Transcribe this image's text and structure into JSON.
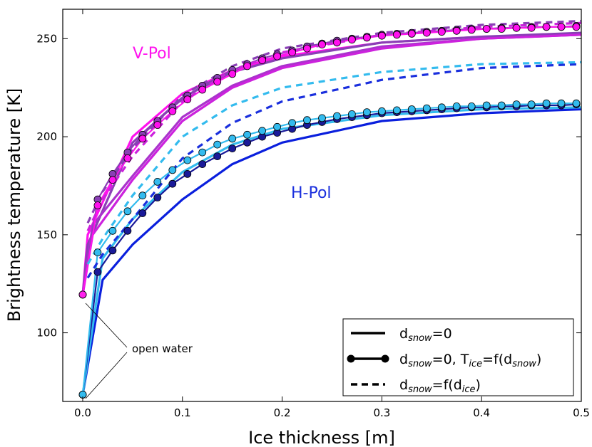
{
  "chart_data": {
    "type": "line",
    "xlabel": "Ice thickness [m]",
    "ylabel": "Brightness temperature [K]",
    "xlim": [
      -0.02,
      0.5
    ],
    "ylim": [
      65,
      265
    ],
    "xticks": [
      "0.0",
      "0.1",
      "0.2",
      "0.3",
      "0.4",
      "0.5"
    ],
    "yticks": [
      "100",
      "150",
      "200",
      "250"
    ],
    "grid": false,
    "legend_position": "bottom-right",
    "annotations": {
      "vpol": "V-Pol",
      "hpol": "H-Pol",
      "open_water": "open water"
    },
    "legend": [
      {
        "style": "solid",
        "prefix": "d",
        "sub": "snow",
        "suffix": "=0",
        "extra": ""
      },
      {
        "style": "solid-markers",
        "prefix": "d",
        "sub": "snow",
        "suffix": "=0, T",
        "extra_sub": "ice",
        "extra": "=f(d",
        "extra_sub2": "snow",
        "end": ")"
      },
      {
        "style": "dashed",
        "prefix": "d",
        "sub": "snow",
        "suffix": "=f(d",
        "extra_sub": "ice",
        "end": ")"
      }
    ],
    "legend_labels": [
      "d_snow=0",
      "d_snow=0, T_ice=f(d_snow)",
      "d_snow=f(d_ice)"
    ],
    "open_water_points": [
      {
        "x": 0.0,
        "y": 119.5,
        "color": "#ff22ee"
      },
      {
        "x": 0.0,
        "y": 68.5,
        "color": "#33bbee"
      }
    ],
    "series": [
      {
        "color": "#ff11ee",
        "style": "solid",
        "x": [
          0.0,
          0.005,
          0.05,
          0.1,
          0.15,
          0.2,
          0.3,
          0.4,
          0.5
        ],
        "y": [
          119.5,
          150,
          200,
          222,
          234,
          241,
          248,
          251,
          252
        ]
      },
      {
        "color": "#8a3fb5",
        "style": "solid",
        "x": [
          0.0,
          0.005,
          0.05,
          0.1,
          0.15,
          0.2,
          0.3,
          0.4,
          0.5
        ],
        "y": [
          119.5,
          145,
          197,
          220,
          233,
          240,
          248,
          251,
          253
        ]
      },
      {
        "color": "#aa33cc",
        "style": "solid",
        "x": [
          0.0,
          0.01,
          0.05,
          0.1,
          0.15,
          0.2,
          0.3,
          0.4,
          0.5
        ],
        "y": [
          119.5,
          155,
          180,
          210,
          226,
          236,
          246,
          250,
          252
        ]
      },
      {
        "color": "#cc22dd",
        "style": "solid",
        "x": [
          0.0,
          0.01,
          0.05,
          0.1,
          0.15,
          0.2,
          0.3,
          0.4,
          0.5
        ],
        "y": [
          119.5,
          150,
          178,
          208,
          225,
          235,
          245,
          250,
          252
        ]
      },
      {
        "color": "#8a3fb5",
        "style": "markers",
        "x": [
          0.0,
          0.015,
          0.03,
          0.045,
          0.06,
          0.075,
          0.09,
          0.105,
          0.12,
          0.135,
          0.15,
          0.165,
          0.18,
          0.195,
          0.21,
          0.225,
          0.24,
          0.255,
          0.27,
          0.285,
          0.3,
          0.315,
          0.33,
          0.345,
          0.36,
          0.375,
          0.39,
          0.405,
          0.42,
          0.435,
          0.45,
          0.465,
          0.48,
          0.495
        ],
        "y": [
          119.5,
          168,
          181,
          192,
          201,
          208,
          215,
          221,
          226,
          230,
          234,
          237,
          240,
          242,
          244,
          246,
          247.5,
          249,
          250,
          251,
          252,
          252.5,
          253,
          253.5,
          254,
          254.5,
          255,
          255,
          255.5,
          255.5,
          256,
          256,
          256,
          256.5
        ]
      },
      {
        "color": "#ff11ee",
        "style": "markers",
        "x": [
          0.0,
          0.015,
          0.03,
          0.045,
          0.06,
          0.075,
          0.09,
          0.105,
          0.12,
          0.135,
          0.15,
          0.165,
          0.18,
          0.195,
          0.21,
          0.225,
          0.24,
          0.255,
          0.27,
          0.285,
          0.3,
          0.315,
          0.33,
          0.345,
          0.36,
          0.375,
          0.39,
          0.405,
          0.42,
          0.435,
          0.45,
          0.465,
          0.48,
          0.495
        ],
        "y": [
          119.5,
          165,
          178,
          189,
          199,
          206,
          213,
          219,
          224,
          228,
          232,
          236,
          239,
          241,
          243,
          245,
          247,
          248,
          249.5,
          250.5,
          251.5,
          252,
          252.5,
          253,
          253.5,
          254,
          254.5,
          255,
          255,
          255.5,
          255.5,
          256,
          256,
          256
        ]
      },
      {
        "color": "#cc22dd",
        "style": "dashed",
        "x": [
          0.005,
          0.02,
          0.05,
          0.1,
          0.15,
          0.2,
          0.3,
          0.4,
          0.5
        ],
        "y": [
          152,
          168,
          190,
          218,
          234,
          243,
          252,
          256,
          258
        ]
      },
      {
        "color": "#8a3fb5",
        "style": "dashed",
        "x": [
          0.005,
          0.02,
          0.05,
          0.1,
          0.15,
          0.2,
          0.3,
          0.4,
          0.5
        ],
        "y": [
          156,
          172,
          194,
          221,
          236,
          245,
          253,
          257,
          259
        ]
      },
      {
        "color": "#0a1fdd",
        "style": "solid",
        "x": [
          0.0,
          0.02,
          0.05,
          0.1,
          0.15,
          0.2,
          0.3,
          0.4,
          0.5
        ],
        "y": [
          68.5,
          127,
          145,
          168,
          186,
          197,
          208,
          212,
          214
        ]
      },
      {
        "color": "#33bbee",
        "style": "solid",
        "x": [
          0.0,
          0.02,
          0.05,
          0.1,
          0.15,
          0.2,
          0.3,
          0.4,
          0.5
        ],
        "y": [
          68.5,
          138,
          158,
          182,
          196,
          204,
          211,
          214,
          215
        ]
      },
      {
        "color": "#1a1a99",
        "style": "markers",
        "x": [
          0.0,
          0.015,
          0.03,
          0.045,
          0.06,
          0.075,
          0.09,
          0.105,
          0.12,
          0.135,
          0.15,
          0.165,
          0.18,
          0.195,
          0.21,
          0.225,
          0.24,
          0.255,
          0.27,
          0.285,
          0.3,
          0.315,
          0.33,
          0.345,
          0.36,
          0.375,
          0.39,
          0.405,
          0.42,
          0.435,
          0.45,
          0.465,
          0.48,
          0.495
        ],
        "y": [
          68.5,
          131,
          142,
          152,
          161,
          169,
          176,
          181,
          186,
          190,
          194,
          197,
          200,
          202,
          204,
          206,
          207.5,
          209,
          210,
          211,
          212,
          212.5,
          213,
          213.5,
          214,
          214.5,
          215,
          215,
          215.5,
          215.5,
          216,
          216,
          216,
          216.5
        ]
      },
      {
        "color": "#33bbee",
        "style": "markers",
        "x": [
          0.0,
          0.015,
          0.03,
          0.045,
          0.06,
          0.075,
          0.09,
          0.105,
          0.12,
          0.135,
          0.15,
          0.165,
          0.18,
          0.195,
          0.21,
          0.225,
          0.24,
          0.255,
          0.27,
          0.285,
          0.3,
          0.315,
          0.33,
          0.345,
          0.36,
          0.375,
          0.39,
          0.405,
          0.42,
          0.435,
          0.45,
          0.465,
          0.48,
          0.495
        ],
        "y": [
          68.5,
          141,
          152,
          162,
          170,
          177,
          183,
          188,
          192,
          196,
          199,
          201,
          203,
          205,
          207,
          208.5,
          209.5,
          210.5,
          211.5,
          212.5,
          213,
          213.5,
          214,
          214.5,
          215,
          215.5,
          215.5,
          216,
          216,
          216.5,
          216.5,
          217,
          217,
          217
        ]
      },
      {
        "color": "#1a2fdd",
        "style": "dashed",
        "x": [
          0.005,
          0.02,
          0.05,
          0.1,
          0.15,
          0.2,
          0.3,
          0.4,
          0.5
        ],
        "y": [
          128,
          140,
          158,
          189,
          207,
          218,
          229,
          235,
          237
        ]
      },
      {
        "color": "#33bbee",
        "style": "dashed",
        "x": [
          0.005,
          0.02,
          0.05,
          0.1,
          0.15,
          0.2,
          0.3,
          0.4,
          0.5
        ],
        "y": [
          135,
          148,
          170,
          200,
          216,
          225,
          233,
          237,
          238
        ]
      }
    ]
  }
}
